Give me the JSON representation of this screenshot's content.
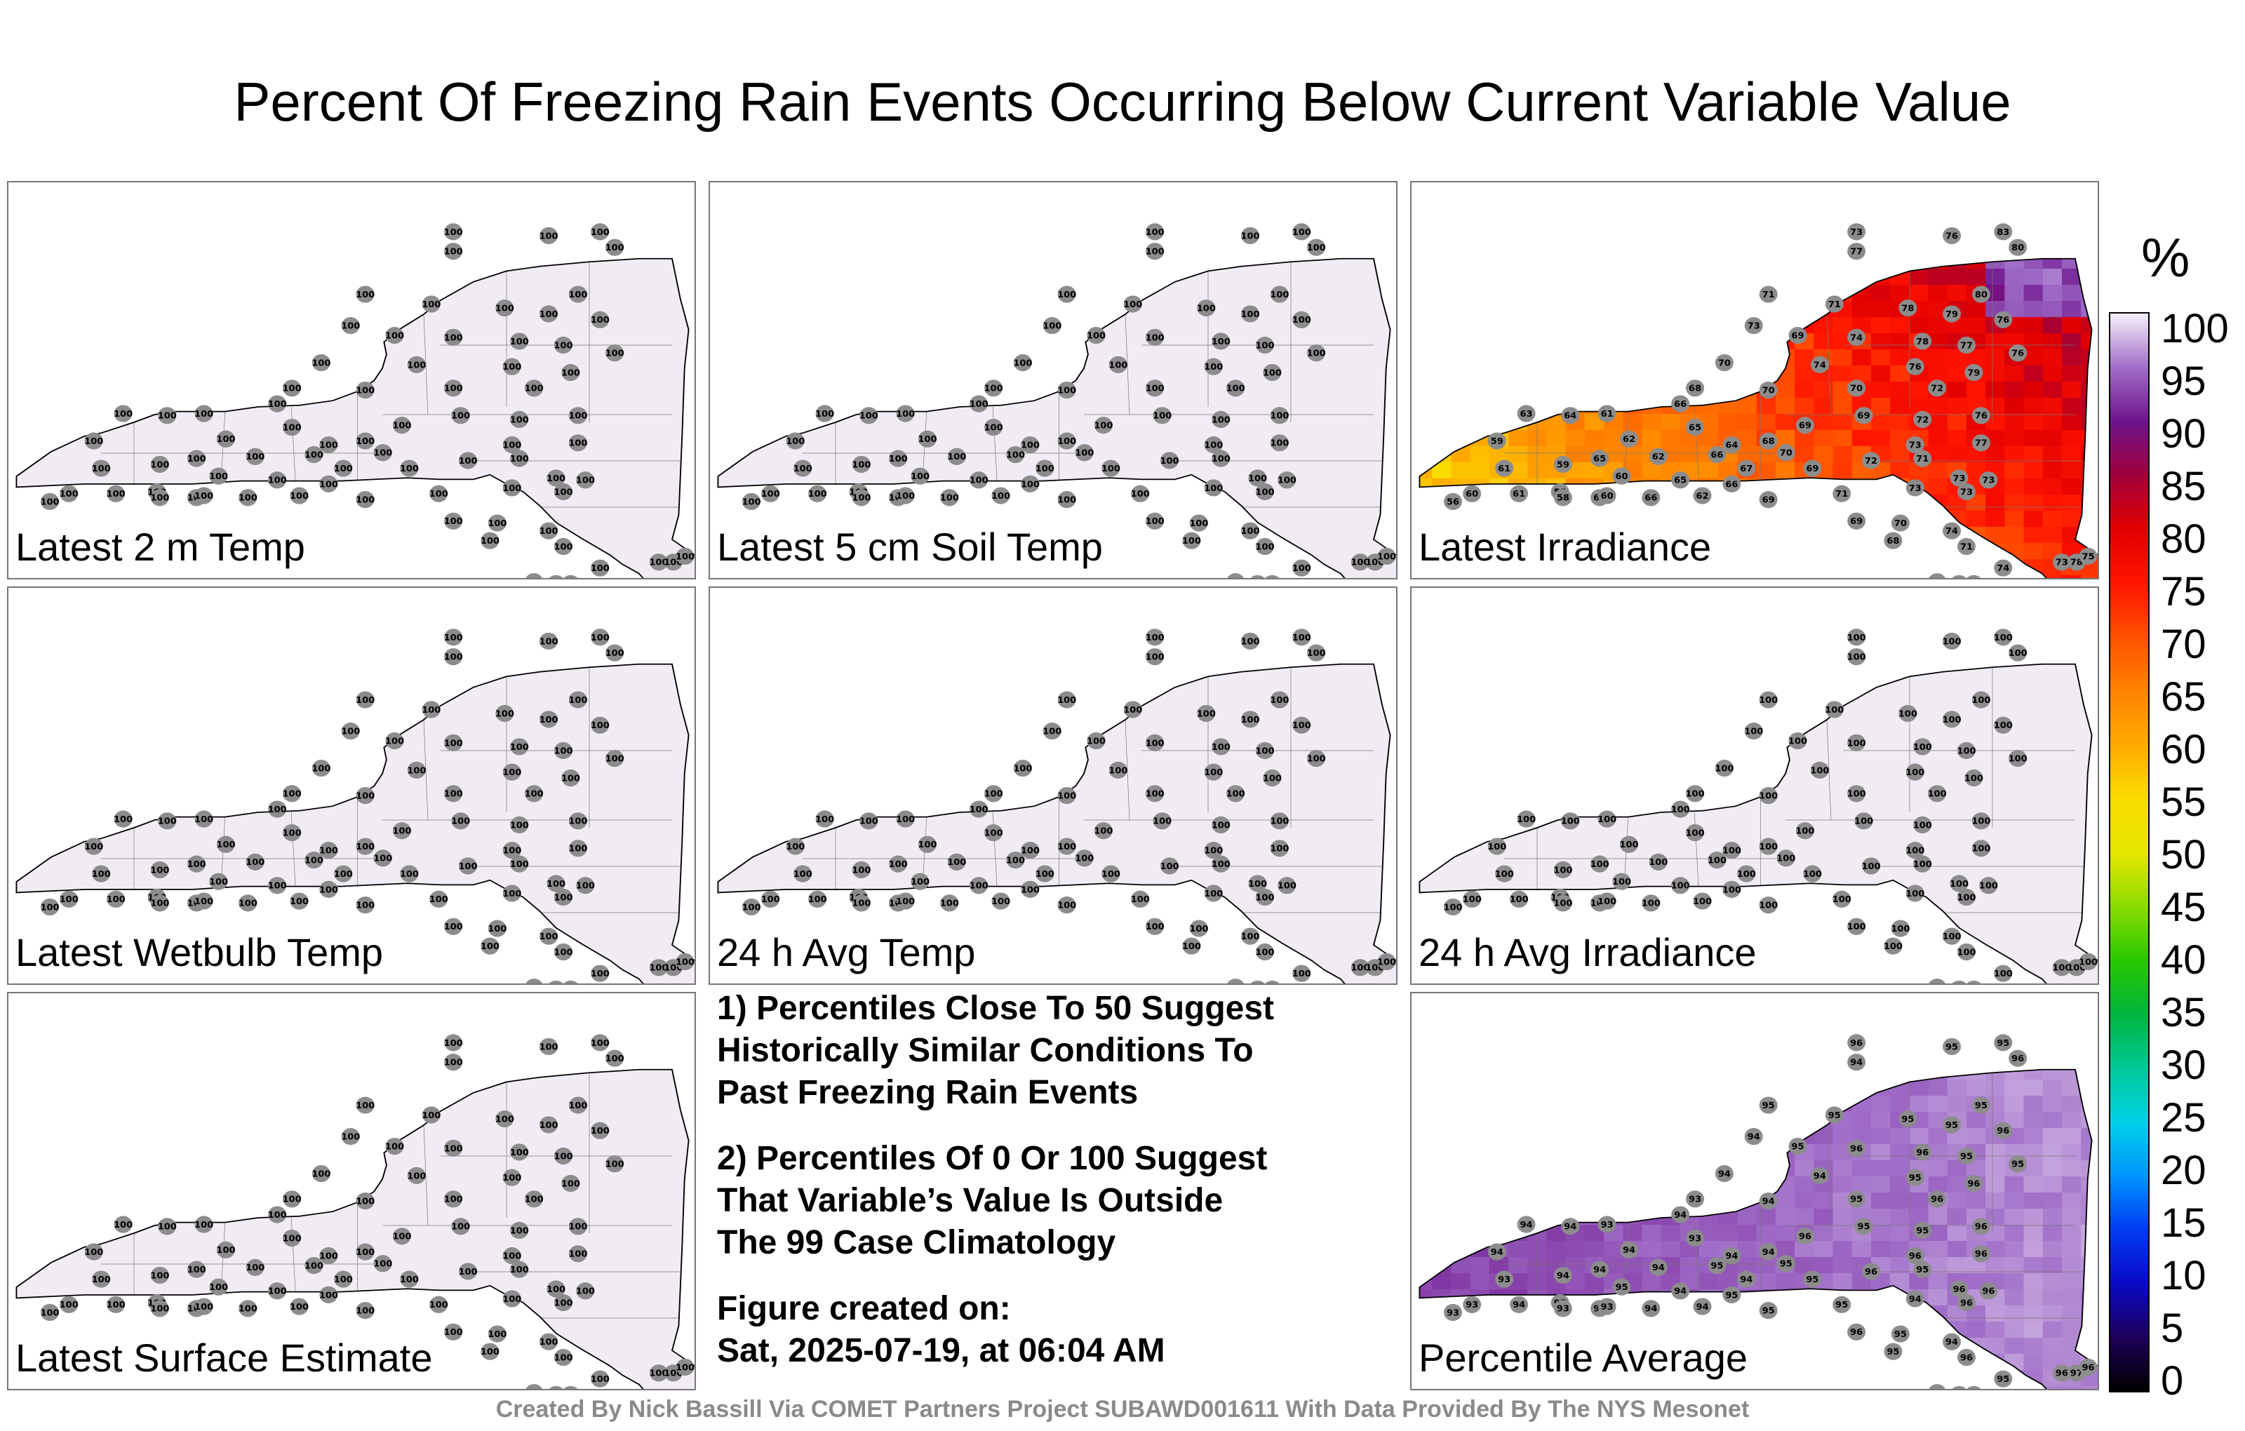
{
  "title": "Percent Of Freezing Rain Events Occurring Below Current Variable Value",
  "panels": [
    {
      "label": "Latest 2 m Temp",
      "mode": "uniform",
      "value": 100
    },
    {
      "label": "Latest 5 cm Soil Temp",
      "mode": "uniform",
      "value": 100
    },
    {
      "label": "Latest Irradiance",
      "mode": "irradiance",
      "value": 68
    },
    {
      "label": "Latest Wetbulb Temp",
      "mode": "uniform",
      "value": 100
    },
    {
      "label": "24 h Avg Temp",
      "mode": "uniform",
      "value": 100
    },
    {
      "label": "24 h Avg Irradiance",
      "mode": "uniform",
      "value": 100
    },
    {
      "label": "Latest Surface Estimate",
      "mode": "uniform",
      "value": 100
    },
    {
      "label": "Percentile Average",
      "mode": "average",
      "value": 95
    }
  ],
  "notes": {
    "note1": "1) Percentiles Close To 50 Suggest\nHistorically Similar Conditions To\nPast Freezing Rain Events",
    "note2": "2) Percentiles Of 0 Or 100 Suggest\nThat Variable’s Value Is Outside\nThe 99 Case Climatology",
    "created": "Figure created on:\nSat, 2025-07-19, at 06:04 AM"
  },
  "colorbar": {
    "unit": "%",
    "ticks": [
      "100",
      "95",
      "90",
      "85",
      "80",
      "75",
      "70",
      "65",
      "60",
      "55",
      "50",
      "45",
      "40",
      "35",
      "30",
      "25",
      "20",
      "15",
      "10",
      "5",
      "0"
    ]
  },
  "footer": "Created By Nick Bassill Via COMET Partners Project SUBAWD001611 With Data Provided By The NYS Mesonet",
  "colors": {
    "uniform_fill": "#f1ecf4",
    "marker": "#8c8c8c",
    "border": "#000000"
  }
}
